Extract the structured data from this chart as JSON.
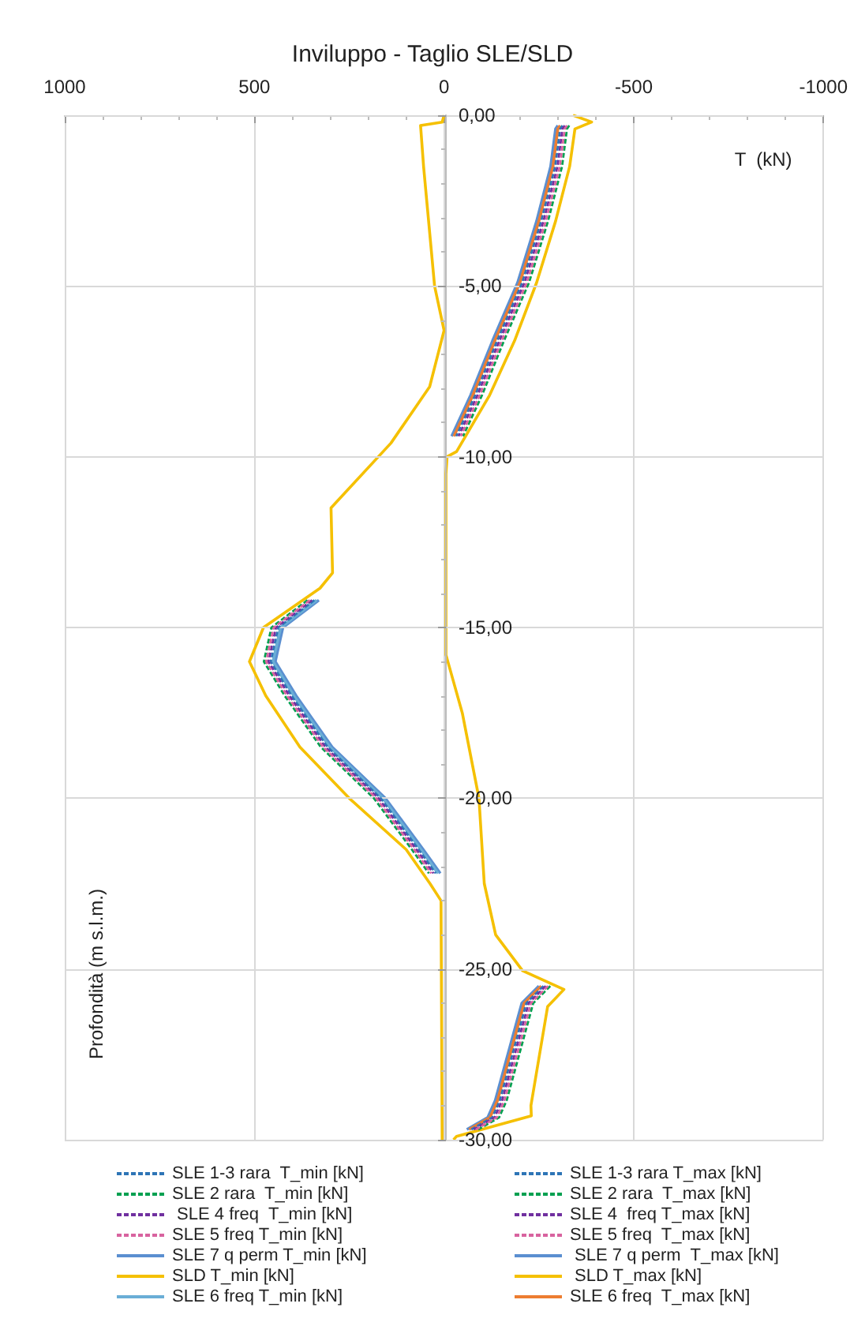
{
  "chart_data": {
    "type": "line",
    "title": "Inviluppo - Taglio SLE/SLD",
    "xlabel": "T  (kN)",
    "ylabel": "Profondità (m s.l.m.)",
    "xlim": [
      1000,
      -1000
    ],
    "xticks": [
      1000,
      500,
      0,
      -500,
      -1000
    ],
    "ylim": [
      -30,
      0
    ],
    "yticks": [
      {
        "value": 0,
        "label": "0,00"
      },
      {
        "value": -5,
        "label": "-5,00"
      },
      {
        "value": -10,
        "label": "-10,00"
      },
      {
        "value": -15,
        "label": "-15,00"
      },
      {
        "value": -20,
        "label": "-20,00"
      },
      {
        "value": -25,
        "label": "-25,00"
      },
      {
        "value": -30,
        "label": "-30,00"
      }
    ],
    "grid": true,
    "legend": "bottom",
    "marker": "none",
    "series": [
      {
        "name": "SLE 1-3 rara  T_min [kN]",
        "color": "#2e75b6",
        "line_style": "dashed",
        "x": [
          342,
          437,
          457,
          402,
          307,
          167,
          67,
          22
        ],
        "values": [
          -14.2,
          -15,
          -16,
          -17,
          -18.5,
          -20,
          -21.5,
          -22.2
        ]
      },
      {
        "name": "SLE 1-3 rara T_max [kN]",
        "color": "#2e75b6",
        "line_style": "dashed",
        "x": [
          -312,
          -306,
          -293,
          -256,
          -206,
          -140,
          -82,
          -32,
          null,
          -262,
          -217,
          -147,
          -127,
          -72
        ],
        "values": [
          -0.3,
          -0.4,
          -1.5,
          -3.1,
          -4.9,
          -6.6,
          -8.2,
          -9.4,
          null,
          -25.5,
          -26,
          -28.85,
          -29.35,
          -29.7
        ]
      },
      {
        "name": "SLE 2 rara  T_min [kN]",
        "color": "#00a050",
        "line_style": "dashed",
        "x": [
          360,
          455,
          475,
          420,
          325,
          185,
          85,
          40
        ],
        "values": [
          -14.2,
          -15,
          -16,
          -17,
          -18.5,
          -20,
          -21.5,
          -22.2
        ]
      },
      {
        "name": "SLE 2 rara  T_max [kN]",
        "color": "#00a050",
        "line_style": "dashed",
        "x": [
          -330,
          -324,
          -311,
          -274,
          -224,
          -158,
          -100,
          -50,
          null,
          -280,
          -235,
          -165,
          -145,
          -90
        ],
        "values": [
          -0.3,
          -0.4,
          -1.5,
          -3.1,
          -4.9,
          -6.6,
          -8.2,
          -9.4,
          null,
          -25.5,
          -26,
          -28.85,
          -29.35,
          -29.7
        ]
      },
      {
        "name": " SLE 4 freq  T_min [kN]",
        "color": "#7030a0",
        "line_style": "dashed",
        "x": [
          348,
          443,
          463,
          408,
          313,
          173,
          73,
          28
        ],
        "values": [
          -14.2,
          -15,
          -16,
          -17,
          -18.5,
          -20,
          -21.5,
          -22.2
        ]
      },
      {
        "name": "SLE 4  freq T_max [kN]",
        "color": "#7030a0",
        "line_style": "dashed",
        "x": [
          -318,
          -312,
          -299,
          -262,
          -212,
          -146,
          -88,
          -38,
          null,
          -268,
          -223,
          -153,
          -133,
          -78
        ],
        "values": [
          -0.3,
          -0.4,
          -1.5,
          -3.1,
          -4.9,
          -6.6,
          -8.2,
          -9.4,
          null,
          -25.5,
          -26,
          -28.85,
          -29.35,
          -29.7
        ]
      },
      {
        "name": "SLE 5 freq T_min [kN]",
        "color": "#d8639f",
        "line_style": "dashed",
        "x": [
          354,
          449,
          469,
          414,
          319,
          179,
          79,
          34
        ],
        "values": [
          -14.2,
          -15,
          -16,
          -17,
          -18.5,
          -20,
          -21.5,
          -22.2
        ]
      },
      {
        "name": "SLE 5 freq  T_max [kN]",
        "color": "#d8639f",
        "line_style": "dashed",
        "x": [
          -324,
          -318,
          -305,
          -268,
          -218,
          -152,
          -94,
          -44,
          null,
          -274,
          -229,
          -159,
          -139,
          -84
        ],
        "values": [
          -0.3,
          -0.4,
          -1.5,
          -3.1,
          -4.9,
          -6.6,
          -8.2,
          -9.4,
          null,
          -25.5,
          -26,
          -28.85,
          -29.35,
          -29.7
        ]
      },
      {
        "name": "SLE 7 q perm T_min [kN]",
        "color": "#5b8fd0",
        "line_style": "solid",
        "x": [
          330,
          425,
          445,
          390,
          295,
          155,
          55,
          10
        ],
        "values": [
          -14.2,
          -15,
          -16,
          -17,
          -18.5,
          -20,
          -21.5,
          -22.2
        ]
      },
      {
        "name": " SLE 7 q perm  T_max [kN]",
        "color": "#5b8fd0",
        "line_style": "solid",
        "x": [
          -300,
          -294,
          -281,
          -244,
          -194,
          -128,
          -70,
          -20,
          null,
          -250,
          -205,
          -135,
          -115,
          -60
        ],
        "values": [
          -0.3,
          -0.4,
          -1.5,
          -3.1,
          -4.9,
          -6.6,
          -8.2,
          -9.4,
          null,
          -25.5,
          -26,
          -28.85,
          -29.35,
          -29.7
        ]
      },
      {
        "name": "SLD T_min [kN]",
        "color": "#f5c000",
        "line_style": "solid",
        "x": [
          0,
          5,
          62,
          54,
          25,
          0,
          38,
          140,
          298,
          294,
          327,
          476,
          513,
          470,
          380,
          250,
          100,
          37,
          8,
          5
        ],
        "values": [
          0,
          -0.2,
          -0.3,
          -1.5,
          -5,
          -6.3,
          -7.95,
          -9.6,
          -11.5,
          -13.4,
          -13.85,
          -15,
          -16,
          -17,
          -18.5,
          -20,
          -21.5,
          -22.5,
          -23,
          -30
        ]
      },
      {
        "name": " SLD T_max [kN]",
        "color": "#f5c000",
        "line_style": "solid",
        "x": [
          -340,
          -389,
          -345,
          -331,
          -294,
          -244,
          -186,
          -120,
          -33,
          -8,
          -5,
          -5,
          -48,
          -92,
          -106,
          -136,
          -207,
          -316,
          -273,
          -229,
          -230,
          -33,
          -25
        ],
        "values": [
          0,
          -0.2,
          -0.4,
          -1.5,
          -3.1,
          -4.9,
          -6.6,
          -8.2,
          -9.85,
          -10,
          -10.5,
          -15.8,
          -17.5,
          -20,
          -22.5,
          -24,
          -25.05,
          -25.6,
          -26.1,
          -29,
          -29.3,
          -29.9,
          -30
        ]
      },
      {
        "name": "SLE 6 freq T_min [kN]",
        "color": "#6aaed6",
        "line_style": "solid",
        "x": [
          336,
          431,
          451,
          396,
          301,
          161,
          61,
          16
        ],
        "values": [
          -14.2,
          -15,
          -16,
          -17,
          -18.5,
          -20,
          -21.5,
          -22.2
        ]
      },
      {
        "name": "SLE 6 freq  T_max [kN]",
        "color": "#ed7d31",
        "line_style": "solid",
        "x": [
          -306,
          -300,
          -287,
          -250,
          -200,
          -134,
          -76,
          -26,
          null,
          -256,
          -211,
          -141,
          -121,
          -66
        ],
        "values": [
          -0.3,
          -0.4,
          -1.5,
          -3.1,
          -4.9,
          -6.6,
          -8.2,
          -9.4,
          null,
          -25.5,
          -26,
          -28.85,
          -29.35,
          -29.7
        ]
      }
    ]
  }
}
